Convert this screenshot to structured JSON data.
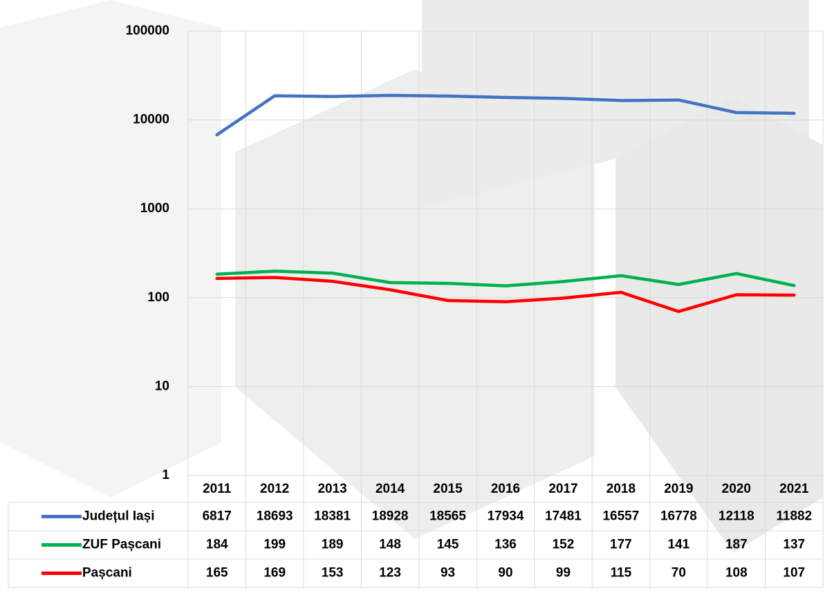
{
  "chart_data": {
    "type": "line",
    "log_scale": true,
    "grid": true,
    "categories": [
      "2011",
      "2012",
      "2013",
      "2014",
      "2015",
      "2016",
      "2017",
      "2018",
      "2019",
      "2020",
      "2021"
    ],
    "series": [
      {
        "name": "Județul Iași",
        "color": "#4472c4",
        "values": [
          6817,
          18693,
          18381,
          18928,
          18565,
          17934,
          17481,
          16557,
          16778,
          12118,
          11882
        ]
      },
      {
        "name": "ZUF Pașcani",
        "color": "#00b050",
        "values": [
          184,
          199,
          189,
          148,
          145,
          136,
          152,
          177,
          141,
          187,
          137
        ]
      },
      {
        "name": "Pașcani",
        "color": "#ff0000",
        "values": [
          165,
          169,
          153,
          123,
          93,
          90,
          99,
          115,
          70,
          108,
          107
        ]
      }
    ],
    "ylim": [
      1,
      100000
    ],
    "yticks": [
      1,
      10,
      100,
      1000,
      10000,
      100000
    ]
  }
}
